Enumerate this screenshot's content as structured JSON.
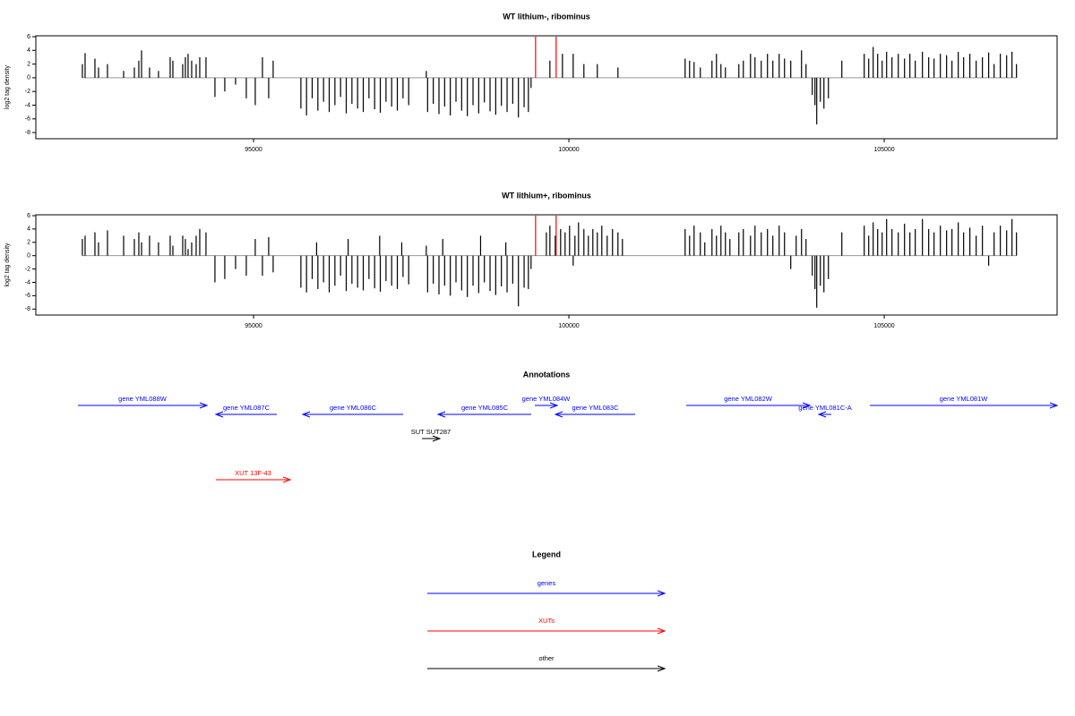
{
  "chart_data": [
    {
      "type": "bar",
      "title": "WT lithium-, ribominus",
      "ylabel": "log2 tag density",
      "color": "#000000",
      "xlim": [
        91548,
        107741
      ],
      "ylim": [
        -8.9,
        6.13
      ],
      "xticks": [
        95000,
        100000,
        105000
      ],
      "yticks": [
        -8,
        -6,
        -4,
        -2,
        0,
        2,
        4,
        6
      ],
      "x": [
        92286,
        92329,
        92485,
        92542,
        92684,
        92940,
        93110,
        93181,
        93224,
        93351,
        93493,
        93678,
        93721,
        93877,
        93919,
        93962,
        94019,
        94090,
        94147,
        94246,
        94388,
        94544,
        94715,
        94885,
        95027,
        95141,
        95240,
        95311,
        95751,
        95840,
        95930,
        96020,
        96110,
        96200,
        96290,
        96380,
        96470,
        96560,
        96650,
        96740,
        96830,
        96920,
        97010,
        97100,
        97190,
        97280,
        97370,
        97460,
        97739,
        97760,
        97850,
        97940,
        98030,
        98120,
        98210,
        98300,
        98390,
        98480,
        98570,
        98660,
        98750,
        98840,
        98930,
        99020,
        99110,
        99200,
        99290,
        99358,
        99400,
        99699,
        99898,
        100068,
        100238,
        100451,
        100778,
        101843,
        101914,
        101985,
        102084,
        102269,
        102340,
        102411,
        102482,
        102695,
        102766,
        102880,
        102951,
        103050,
        103149,
        103234,
        103334,
        103419,
        103518,
        103689,
        103760,
        103859,
        103902,
        103930,
        103987,
        104044,
        104115,
        104328,
        104683,
        104754,
        104825,
        104896,
        104967,
        105038,
        105123,
        105223,
        105322,
        105407,
        105492,
        105606,
        105705,
        105790,
        105890,
        105989,
        106074,
        106174,
        106259,
        106358,
        106458,
        106557,
        106656,
        106742,
        106841,
        106941,
        107026,
        107097
      ],
      "values": [
        2,
        3.6,
        2.8,
        1.5,
        2,
        1,
        1.5,
        2.5,
        4,
        1.5,
        1,
        3,
        2.5,
        2,
        3,
        3.5,
        2.5,
        2,
        3,
        3,
        -2.8,
        -2,
        -1,
        -3,
        -4,
        3,
        -3,
        2.5,
        -4.5,
        -5.5,
        -3,
        -4.8,
        -3.5,
        -5,
        -4,
        -2.8,
        -5.2,
        -3.8,
        -4.5,
        -5,
        -3,
        -4.6,
        -5.1,
        -3.5,
        -4.2,
        -4.8,
        -3,
        -4,
        1,
        -5,
        -3.8,
        -5.3,
        -4.2,
        -5.5,
        -3.5,
        -4.8,
        -5.6,
        -4,
        -5.2,
        -3.6,
        -4.9,
        -5.4,
        -4.1,
        -5,
        -3.8,
        -5.8,
        -4.3,
        -5,
        -1.5,
        2.5,
        3.5,
        3.5,
        2,
        2,
        1.5,
        2.8,
        2.5,
        2.3,
        1.5,
        2.5,
        3.5,
        2,
        1.5,
        2,
        2.5,
        3.5,
        3,
        2.5,
        3.5,
        2.5,
        3.5,
        2.8,
        2.5,
        4,
        2,
        -2.5,
        -4,
        -6.8,
        -3.5,
        -4.5,
        -3,
        2.5,
        3.5,
        2.8,
        4.5,
        3.5,
        2.5,
        3.8,
        3,
        3.5,
        2.8,
        3.5,
        2.5,
        3.8,
        3,
        2.8,
        3.5,
        3.3,
        2.5,
        3.8,
        3,
        3.5,
        2.5,
        3,
        3.7,
        2,
        3.5,
        3.3,
        3.8,
        2
      ],
      "highlights": {
        "color": "#ff0000",
        "x": [
          99472,
          99798
        ],
        "values": [
          6,
          6
        ]
      }
    },
    {
      "type": "bar",
      "title": "WT lithium+, ribominus",
      "ylabel": "log2 tag density",
      "color": "#000000",
      "xlim": [
        91548,
        107741
      ],
      "ylim": [
        -8.9,
        6.13
      ],
      "xticks": [
        95000,
        100000,
        105000
      ],
      "yticks": [
        -8,
        -6,
        -4,
        -2,
        0,
        2,
        4,
        6
      ],
      "x": [
        92286,
        92329,
        92485,
        92542,
        92684,
        92940,
        93110,
        93181,
        93224,
        93351,
        93493,
        93678,
        93721,
        93877,
        93919,
        93962,
        94019,
        94090,
        94147,
        94246,
        94388,
        94544,
        94715,
        94885,
        95027,
        95141,
        95240,
        95311,
        95751,
        95840,
        95930,
        96000,
        96020,
        96110,
        96200,
        96290,
        96380,
        96470,
        96500,
        96560,
        96650,
        96740,
        96830,
        96920,
        97000,
        97010,
        97100,
        97190,
        97280,
        97350,
        97370,
        97460,
        97739,
        97760,
        97850,
        97940,
        98000,
        98030,
        98120,
        98210,
        98300,
        98390,
        98480,
        98570,
        98600,
        98660,
        98750,
        98840,
        98930,
        99000,
        99020,
        99110,
        99200,
        99290,
        99358,
        99400,
        99643,
        99699,
        99784,
        99869,
        99940,
        100011,
        100068,
        100096,
        100153,
        100238,
        100309,
        100380,
        100451,
        100522,
        100607,
        100692,
        100778,
        100849,
        101843,
        101914,
        101985,
        102084,
        102155,
        102269,
        102340,
        102411,
        102482,
        102553,
        102695,
        102766,
        102880,
        102951,
        103050,
        103149,
        103234,
        103334,
        103419,
        103518,
        103604,
        103689,
        103760,
        103859,
        103902,
        103930,
        103987,
        104044,
        104115,
        104328,
        104683,
        104754,
        104825,
        104896,
        104967,
        105038,
        105123,
        105223,
        105322,
        105407,
        105492,
        105606,
        105705,
        105790,
        105890,
        105989,
        106074,
        106174,
        106259,
        106358,
        106458,
        106557,
        106656,
        106742,
        106841,
        106941,
        107026,
        107097
      ],
      "values": [
        2.5,
        3,
        3.5,
        2,
        3.8,
        3,
        2.5,
        3.5,
        2,
        3,
        2,
        3,
        1.5,
        3,
        2.5,
        1,
        2,
        3,
        4,
        3.5,
        -4,
        -3.5,
        -2,
        -3,
        2.5,
        -3,
        2.8,
        -2.5,
        -4.8,
        -5.5,
        -3.5,
        2,
        -5,
        -4,
        -5.5,
        -4.5,
        -3,
        -5.3,
        2.5,
        -4.2,
        -4.8,
        -5.2,
        -3.5,
        -4.9,
        3,
        -5.4,
        -3.8,
        -4.5,
        -5,
        2,
        -3.2,
        -4.3,
        1.5,
        -5.5,
        -4.2,
        -5.8,
        2.5,
        -4.5,
        -6,
        -4,
        -5.2,
        -6.2,
        -4.5,
        -5.6,
        3,
        -4,
        -5.3,
        -5.9,
        -4.6,
        2,
        -5.5,
        -4.2,
        -7.6,
        -4.8,
        -5,
        -2,
        3.5,
        4.5,
        3,
        4,
        3.5,
        4.5,
        -1.5,
        3,
        5,
        4,
        3,
        4,
        3.5,
        4.5,
        3,
        4,
        3.5,
        2.5,
        4,
        3,
        4.5,
        3.5,
        2,
        4,
        3,
        4.5,
        3.5,
        2.5,
        3.5,
        4,
        3,
        4.5,
        3.5,
        4,
        3,
        4.5,
        3.5,
        -2,
        3,
        4,
        2.5,
        -3,
        -5,
        -7.8,
        -4.5,
        -5.5,
        -3.5,
        3.5,
        4.5,
        3,
        5,
        4,
        3.5,
        5.5,
        4,
        3.5,
        4.8,
        3.5,
        4,
        5.5,
        4,
        3.5,
        4.5,
        3.8,
        4,
        5,
        3.5,
        4.2,
        3,
        4.5,
        -1.5,
        3.5,
        4.5,
        3.8,
        5.5,
        3.5
      ],
      "highlights": {
        "color": "#ff0000",
        "x": [
          99472,
          99798
        ],
        "values": [
          6,
          6
        ]
      }
    }
  ],
  "annotations": {
    "title": "Annotations",
    "groups": [
      {
        "features": [
          {
            "label": "gene YML088W",
            "start": 92216,
            "end": 94261,
            "strand": "+"
          },
          {
            "label": "gene YML087C",
            "start": 94403,
            "end": 95369,
            "strand": "-"
          },
          {
            "label": "gene YML086C",
            "start": 95781,
            "end": 97372,
            "strand": "-"
          },
          {
            "label": "gene YML085C",
            "start": 97926,
            "end": 99403,
            "strand": "-"
          },
          {
            "label": "gene YML084W",
            "start": 99460,
            "end": 99815,
            "strand": "+"
          },
          {
            "label": "gene YML083C",
            "start": 99787,
            "end": 101051,
            "strand": "-"
          },
          {
            "label": "gene YML082W",
            "start": 101861,
            "end": 103821,
            "strand": "+"
          },
          {
            "label": "gene YML081C-A",
            "start": 103963,
            "end": 104162,
            "strand": "-"
          },
          {
            "label": "gene YML081W",
            "start": 104773,
            "end": 107741,
            "strand": "+"
          }
        ]
      },
      {
        "features": [
          {
            "label": "XUT 13F-43",
            "start": 94403,
            "end": 95582,
            "strand": "+"
          }
        ]
      },
      {
        "features": [
          {
            "label": "SUT SUT287",
            "start": 97670,
            "end": 97954,
            "strand": "+"
          }
        ]
      }
    ]
  },
  "legend": {
    "title": "Legend",
    "items": [
      {
        "label": "genes",
        "color": "#0000ff"
      },
      {
        "label": "XUTs",
        "color": "#ff0000"
      },
      {
        "label": "other",
        "color": "#000000"
      }
    ]
  }
}
